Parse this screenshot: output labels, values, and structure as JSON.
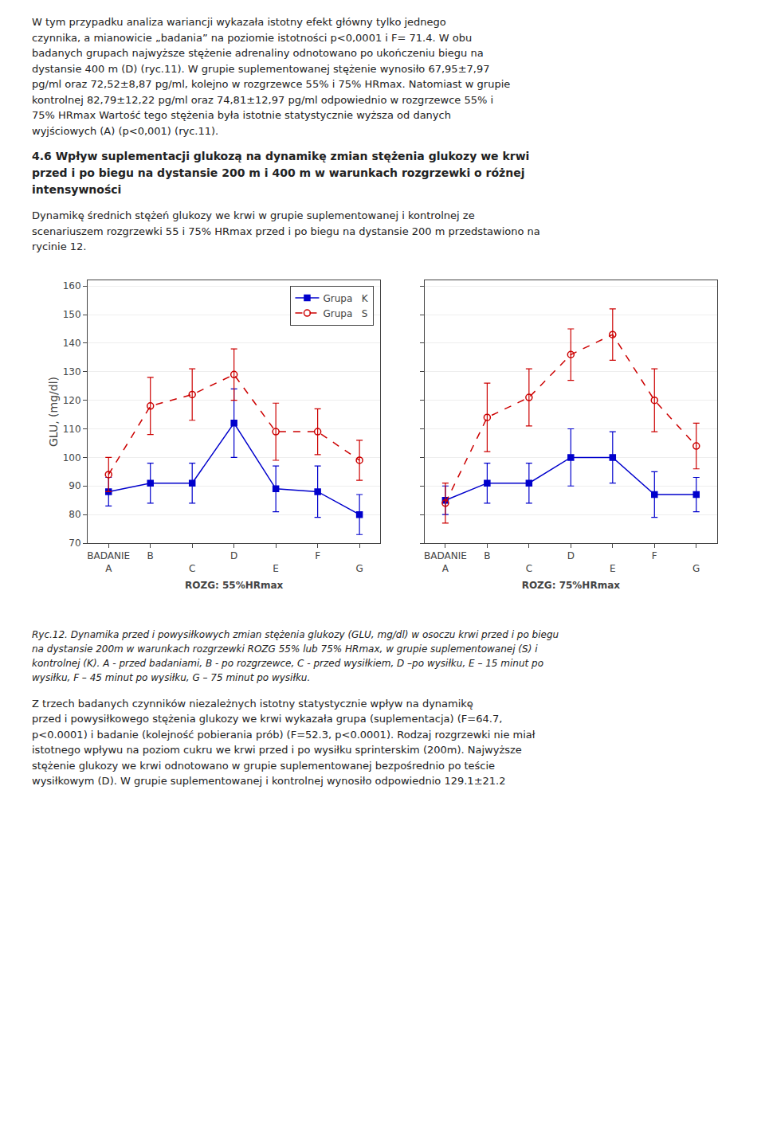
{
  "text_before": "W tym przypadku analiza wariancji wykazała istotny efekt główny tylko jednego\nczynnika, a mianowicie „badania” na poziomie istotności p<0,0001 i F= 71.4. W obu\nbadanych grupach najwyższe stężenie adrenaliny odnotowano po ukończeniu biegu na\ndystansie 400 m (D) (ryc.11). W grupie suplementowanej stężenie wynosiło 67,95±7,97\npg/ml oraz 72,52±8,87 pg/ml, kolejno w rozgrzewce 55% i 75% HRmax. Natomiast w grupie\nkontrolnej 82,79±12,22 pg/ml oraz 74,81±12,97 pg/ml odpowiednio w rozgrzewce 55% i\n75% HRmax Wartość tego stężenia była istotnie statystycznie wyższa od danych\nwyjściowych (A) (p<0,001) (ryc.11).",
  "heading": "4.6 Wpływ suplementacji glukozą na dynamikę zmian stężenia glukozy we krwi\nprzed i po biegu na dystansie 200 m i 400 m w warunkach rozgrzewki o różnej\nintensywności",
  "intro": "Dynamikę średnich stężeń glukozy we krwi w grupie suplementowanej i kontrolnej ze\nscenariuszem rozgrzewki 55 i 75% HRmax przed i po biegu na dystansie 200 m przedstawiono na\nrycinie 12.",
  "caption": "Ryc.12. Dynamika przed i powysiłkowych zmian stężenia glukozy (GLU, mg/dl) w osoczu krwi przed i po biegu\nna dystansie 200m w warunkach rozgrzewki ROZG 55% lub 75% HRmax, w grupie suplementowanej (S) i\nkontrolnej (K). A - przed badaniami, B - po rozgrzewce, C - przed wysiłkiem, D –po wysiłku, E – 15 minut po\nwysiłku, F – 45 minut po wysiłku, G – 75 minut po wysiłku.",
  "text_after": "Z trzech badanych czynników niezależnych istotny statystycznie wpływ na dynamikę\nprzed i powysiłkowego stężenia glukozy we krwi wykazała grupa (suplementacja) (F=64.7,\np<0.0001) i badanie (kolejność pobierania prób) (F=52.3, p<0.0001). Rodzaj rozgrzewki nie miał\nistotnego wpływu na poziom cukru we krwi przed i po wysiłku sprinterskim (200m). Najwyższe\nstężenie glukozy we krwi odnotowano w grupie suplementowanej bezpośrednio po teście\nwysiłkowym (D). W grupie suplementowanej i kontrolnej wynosiło odpowiednio 129.1±21.2",
  "chart_data": [
    {
      "type": "line",
      "title": "ROZG: 55%HRmax",
      "ylabel": "GLU, (mg/dl)",
      "categories": [
        "BADANIE\nA",
        "B",
        "C",
        "D",
        "E",
        "F",
        "G"
      ],
      "ylim": [
        70,
        162
      ],
      "yticks": [
        70,
        80,
        90,
        100,
        110,
        120,
        130,
        140,
        150,
        160
      ],
      "grid": true,
      "legend": "upper right",
      "series": [
        {
          "name": "Grupa   K",
          "color": "#0000cc",
          "marker": "square",
          "line_style": "solid",
          "values": [
            88.0,
            91.0,
            91.0,
            112.0,
            89.0,
            88.0,
            80.0
          ],
          "errors": [
            5.0,
            7.0,
            7.0,
            12.0,
            8.0,
            9.0,
            7.0
          ]
        },
        {
          "name": "Grupa   S",
          "color": "#cc0000",
          "marker": "circle-open",
          "line_style": "dashed",
          "values": [
            94.0,
            118.0,
            122.0,
            129.0,
            109.0,
            109.0,
            99.0
          ],
          "errors": [
            6.0,
            10.0,
            9.0,
            9.0,
            10.0,
            8.0,
            7.0
          ]
        }
      ]
    },
    {
      "type": "line",
      "title": "ROZG: 75%HRmax",
      "categories": [
        "BADANIE\nA",
        "B",
        "C",
        "D",
        "E",
        "F",
        "G"
      ],
      "ylim": [
        70,
        162
      ],
      "yticks": [
        70,
        80,
        90,
        100,
        110,
        120,
        130,
        140,
        150,
        160
      ],
      "grid": true,
      "tick_labels": "x",
      "series": [
        {
          "name": "Grupa   K",
          "color": "#0000cc",
          "marker": "square",
          "line_style": "solid",
          "values": [
            85.0,
            91.0,
            91.0,
            100.0,
            100.0,
            87.0,
            87.0
          ],
          "errors": [
            5.0,
            7.0,
            7.0,
            10.0,
            9.0,
            8.0,
            6.0
          ]
        },
        {
          "name": "Grupa   S",
          "color": "#cc0000",
          "marker": "circle-open",
          "line_style": "dashed",
          "values": [
            84.0,
            114.0,
            121.0,
            136.0,
            143.0,
            120.0,
            104.0
          ],
          "errors": [
            7.0,
            12.0,
            10.0,
            9.0,
            9.0,
            11.0,
            8.0
          ]
        }
      ]
    }
  ]
}
